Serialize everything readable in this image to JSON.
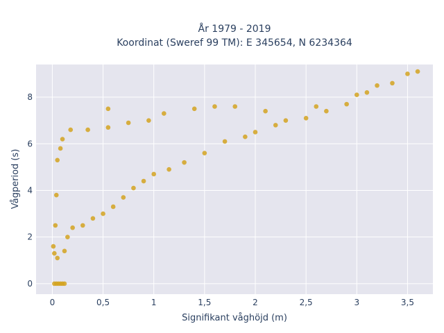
{
  "chart_data": {
    "type": "scatter",
    "title": "År 1979 - 2019",
    "subtitle": "Koordinat (Sweref 99 TM): E 345654, N 6234364",
    "xlabel": "Signifikant våghöjd (m)",
    "ylabel": "Vågperiod (s)",
    "xlim": [
      -0.16,
      3.75
    ],
    "ylim": [
      -0.45,
      9.4
    ],
    "x_ticks": [
      0,
      0.5,
      1,
      1.5,
      2,
      2.5,
      3,
      3.5
    ],
    "x_tick_labels": [
      "0",
      "0,5",
      "1",
      "1,5",
      "2",
      "2,5",
      "3",
      "3,5"
    ],
    "y_ticks": [
      0,
      2,
      4,
      6,
      8
    ],
    "y_tick_labels": [
      "0",
      "2",
      "4",
      "6",
      "8"
    ],
    "grid": true,
    "legend": "none",
    "background_color": "#e5e5ee",
    "marker_color": "#d4a320",
    "series": [
      {
        "values": [
          [
            0.02,
            0.0
          ],
          [
            0.04,
            0.0
          ],
          [
            0.06,
            0.0
          ],
          [
            0.08,
            0.0
          ],
          [
            0.1,
            0.0
          ],
          [
            0.12,
            0.0
          ],
          [
            0.01,
            1.6
          ],
          [
            0.02,
            1.3
          ],
          [
            0.05,
            1.1
          ],
          [
            0.03,
            2.5
          ],
          [
            0.04,
            3.8
          ],
          [
            0.05,
            5.3
          ],
          [
            0.08,
            5.8
          ],
          [
            0.1,
            6.2
          ],
          [
            0.12,
            1.4
          ],
          [
            0.18,
            6.6
          ],
          [
            0.15,
            2.0
          ],
          [
            0.2,
            2.4
          ],
          [
            0.3,
            2.5
          ],
          [
            0.35,
            6.6
          ],
          [
            0.4,
            2.8
          ],
          [
            0.5,
            3.0
          ],
          [
            0.55,
            6.7
          ],
          [
            0.6,
            3.3
          ],
          [
            0.55,
            7.5
          ],
          [
            0.7,
            3.7
          ],
          [
            0.75,
            6.9
          ],
          [
            0.8,
            4.1
          ],
          [
            0.9,
            4.4
          ],
          [
            0.95,
            7.0
          ],
          [
            1.0,
            4.7
          ],
          [
            1.1,
            7.3
          ],
          [
            1.15,
            4.9
          ],
          [
            1.3,
            5.2
          ],
          [
            1.4,
            7.5
          ],
          [
            1.5,
            5.6
          ],
          [
            1.6,
            7.6
          ],
          [
            1.7,
            6.1
          ],
          [
            1.8,
            7.6
          ],
          [
            1.9,
            6.3
          ],
          [
            2.0,
            6.5
          ],
          [
            2.1,
            7.4
          ],
          [
            2.2,
            6.8
          ],
          [
            2.3,
            7.0
          ],
          [
            2.5,
            7.1
          ],
          [
            2.6,
            7.6
          ],
          [
            2.7,
            7.4
          ],
          [
            2.9,
            7.7
          ],
          [
            3.0,
            8.1
          ],
          [
            3.1,
            8.2
          ],
          [
            3.2,
            8.5
          ],
          [
            3.35,
            8.6
          ],
          [
            3.5,
            9.0
          ],
          [
            3.6,
            9.1
          ]
        ]
      }
    ]
  }
}
